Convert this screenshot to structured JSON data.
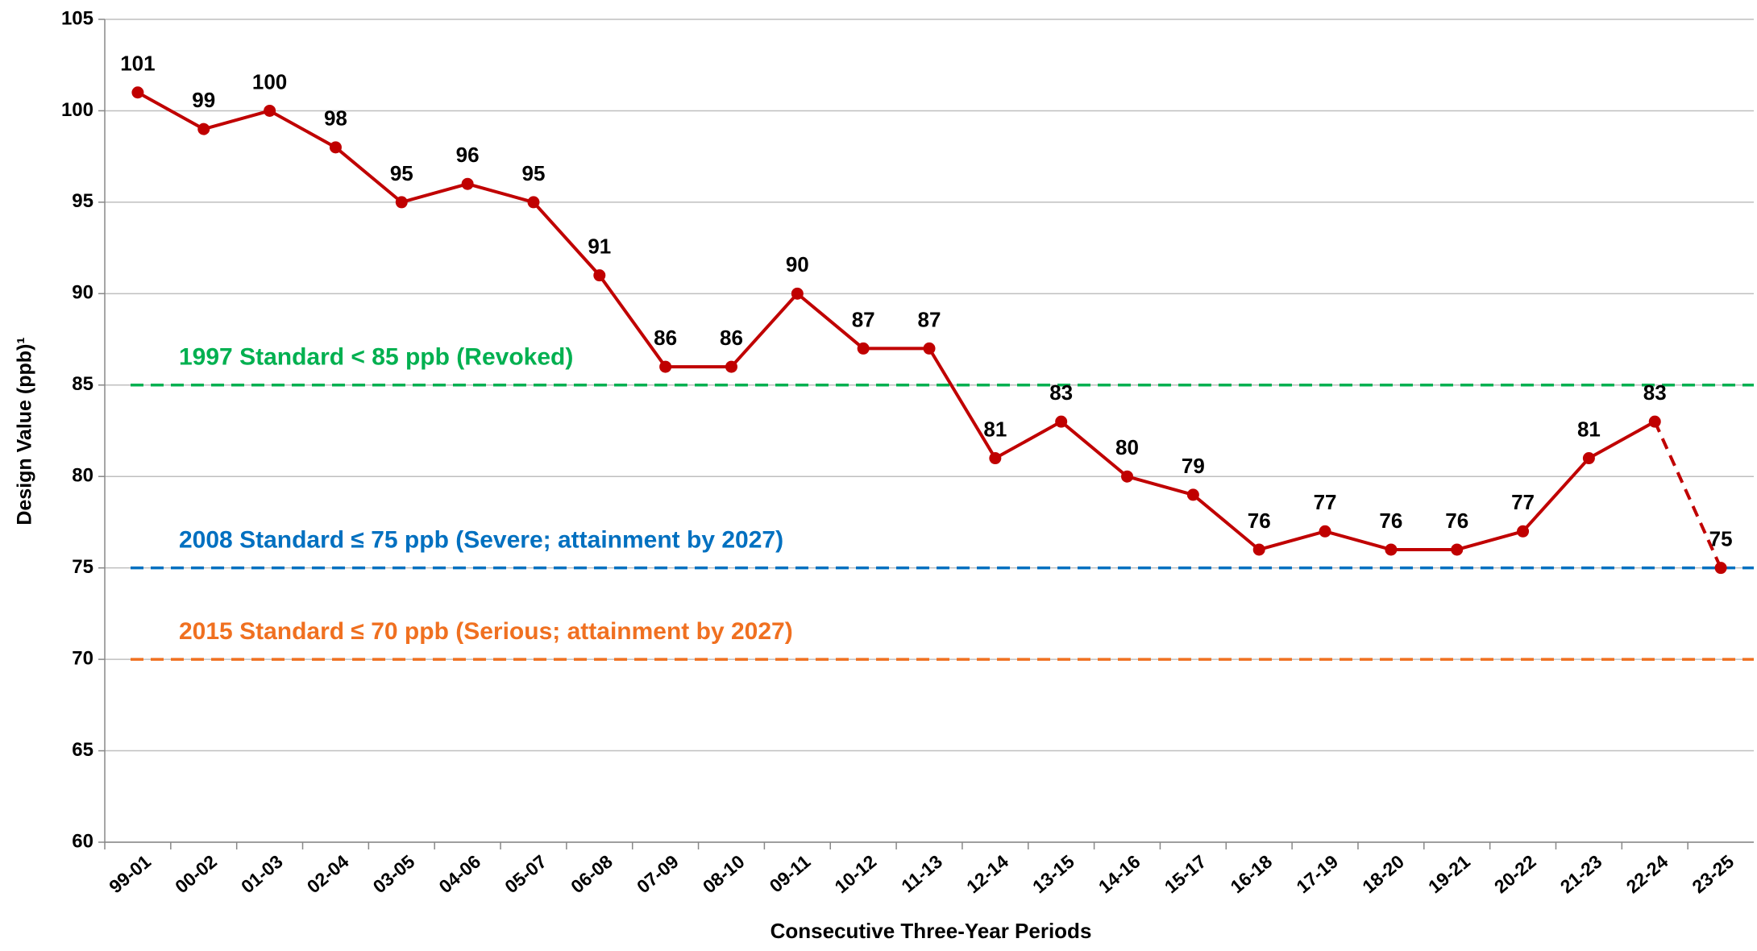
{
  "chart_data": {
    "type": "line",
    "x_label": "Consecutive Three-Year Periods",
    "y_label": "Design Value (ppb)¹",
    "categories": [
      "99-01",
      "00-02",
      "01-03",
      "02-04",
      "03-05",
      "04-06",
      "05-07",
      "06-08",
      "07-09",
      "08-10",
      "09-11",
      "10-12",
      "11-13",
      "12-14",
      "13-15",
      "14-16",
      "15-17",
      "16-18",
      "17-19",
      "18-20",
      "19-21",
      "20-22",
      "21-23",
      "22-24",
      "23-25"
    ],
    "series": [
      {
        "color": "#c00000",
        "values": [
          101,
          99,
          100,
          98,
          95,
          96,
          95,
          91,
          86,
          86,
          90,
          87,
          87,
          81,
          83,
          80,
          79,
          76,
          77,
          76,
          76,
          77,
          81,
          83,
          75
        ]
      }
    ],
    "last_segment_dashed": true,
    "data_labels": true,
    "reference_lines": [
      {
        "value": 85,
        "label": "1997 Standard < 85 ppb (Revoked)",
        "color": "#00b050"
      },
      {
        "value": 75,
        "label": "2008 Standard ≤ 75 ppb (Severe; attainment by 2027)",
        "color": "#0070c0"
      },
      {
        "value": 70,
        "label": "2015 Standard ≤ 70 ppb (Serious; attainment by 2027)",
        "color": "#f07020"
      }
    ],
    "ylim": [
      60,
      105
    ],
    "yticks": [
      60,
      65,
      70,
      75,
      80,
      85,
      90,
      95,
      100,
      105
    ],
    "grid": true
  }
}
